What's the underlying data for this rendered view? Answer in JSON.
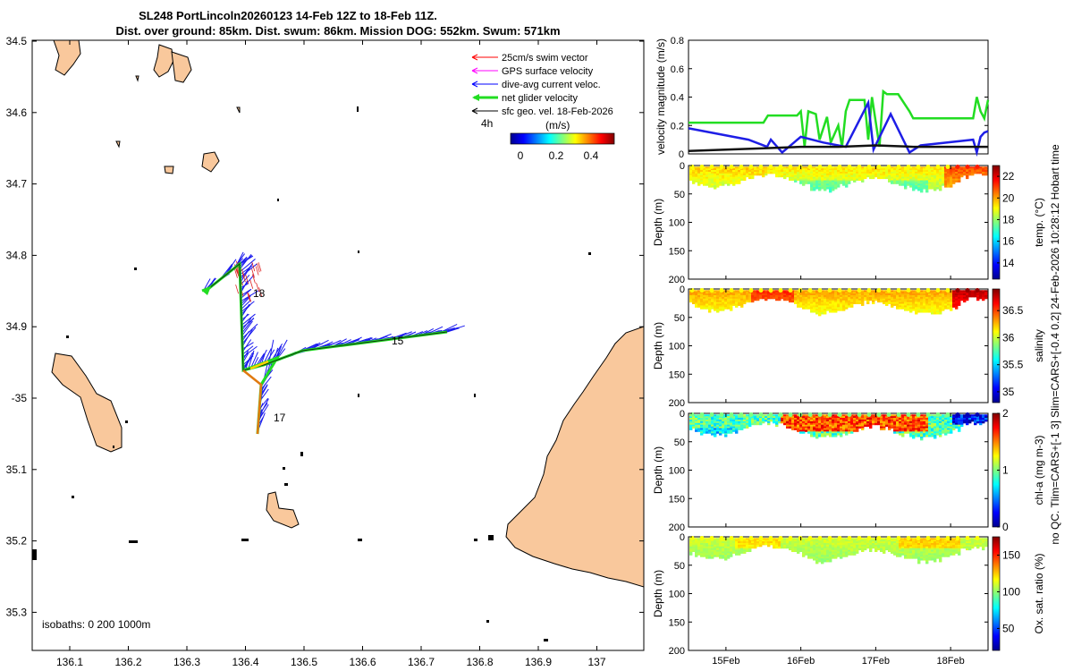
{
  "header": {
    "title_line1": "SL248 PortLincoln20260123 14-Feb 12Z to 18-Feb 11Z.",
    "title_line2": "Dist. over ground: 85km. Dist. swum: 86km. Mission DOG: 552km. Swum: 571km"
  },
  "side_text": "no QC. Tlim=CARS+[-1 3] Slim=CARS+[-0.4 0.2] 24-Feb-2026 10:28:12 Hobart time",
  "map": {
    "lon_ticks": [
      "136.1",
      "136.2",
      "136.3",
      "136.4",
      "136.5",
      "136.6",
      "136.7",
      "136.8",
      "136.9",
      "137"
    ],
    "lat_ticks": [
      "34.5",
      "34.6",
      "34.7",
      "34.8",
      "34.9",
      "-35",
      "35.1",
      "35.2",
      "35.3"
    ],
    "legend": [
      {
        "label": "25cm/s swim vector",
        "color": "#ff0000",
        "kind": "thin"
      },
      {
        "label": "GPS surface velocity",
        "color": "#ff00ff",
        "kind": "thin"
      },
      {
        "label": "dive-avg current veloc.",
        "color": "#0000ff",
        "kind": "thin"
      },
      {
        "label": "net glider velocity",
        "color": "#22dd22",
        "kind": "thick"
      },
      {
        "label": "sfc geo. vel. 18-Feb-2026",
        "color": "#000000",
        "kind": "thin"
      }
    ],
    "ref_arrow_label": "4h",
    "colorbar_label": "(m/s)",
    "colorbar_ticks": [
      "0",
      "0.2",
      "0.4"
    ],
    "day_labels": [
      {
        "text": "18",
        "lon": 136.41,
        "lat": 34.84
      },
      {
        "text": "15",
        "lon": 136.65,
        "lat": 34.93
      },
      {
        "text": "17",
        "lon": 136.43,
        "lat": 35.04
      }
    ],
    "isobaths_label": "isobaths: 0   200  1000m"
  },
  "chart_data": [
    {
      "type": "line",
      "title": "",
      "ylabel": "velocity magnitude (m/s)",
      "ylim": [
        0,
        0.8
      ],
      "yticks": [
        "0",
        "0.2",
        "0.4",
        "0.6",
        "0.8"
      ],
      "x_range_days": [
        14.5,
        18.5
      ],
      "series": [
        {
          "name": "net glider velocity",
          "color": "#22dd22",
          "x": [
            14.5,
            14.8,
            15.2,
            15.5,
            15.56,
            15.6,
            15.8,
            15.95,
            16.0,
            16.05,
            16.1,
            16.2,
            16.25,
            16.35,
            16.4,
            16.5,
            16.55,
            16.6,
            16.65,
            16.75,
            16.85,
            16.9,
            16.95,
            17.05,
            17.1,
            17.15,
            17.3,
            17.45,
            17.5,
            17.9,
            18.3,
            18.35,
            18.4,
            18.45,
            18.5
          ],
          "y": [
            0.22,
            0.22,
            0.22,
            0.22,
            0.27,
            0.27,
            0.27,
            0.27,
            0.3,
            0.05,
            0.3,
            0.28,
            0.1,
            0.26,
            0.08,
            0.2,
            0.05,
            0.3,
            0.38,
            0.38,
            0.38,
            0.1,
            0.4,
            0.05,
            0.44,
            0.42,
            0.42,
            0.3,
            0.25,
            0.25,
            0.25,
            0.4,
            0.3,
            0.25,
            0.38
          ]
        },
        {
          "name": "dive-avg current veloc.",
          "color": "#1e1ee6",
          "x": [
            14.5,
            15.3,
            15.55,
            15.6,
            15.75,
            16.0,
            16.3,
            16.6,
            16.9,
            16.97,
            17.2,
            17.45,
            17.6,
            18.3,
            18.35,
            18.4,
            18.45,
            18.5
          ],
          "y": [
            0.18,
            0.1,
            0.05,
            0.1,
            0.01,
            0.12,
            0.08,
            0.05,
            0.36,
            0.03,
            0.28,
            0.01,
            0.06,
            0.1,
            0.01,
            0.12,
            0.15,
            0.16
          ]
        },
        {
          "name": "sfc geo. vel.",
          "color": "#111111",
          "x": [
            14.5,
            15.0,
            15.5,
            16.0,
            16.5,
            17.0,
            17.5,
            18.0,
            18.5
          ],
          "y": [
            0.02,
            0.03,
            0.04,
            0.05,
            0.05,
            0.06,
            0.05,
            0.05,
            0.05
          ]
        }
      ]
    },
    {
      "type": "heatmap",
      "ylabel": "Depth (m)",
      "yticks": [
        "0",
        "50",
        "100",
        "150",
        "200"
      ],
      "ylim": [
        200,
        0
      ],
      "colorbar_label": "temp. (°C)",
      "colorbar_ticks": [
        "14",
        "16",
        "18",
        "20",
        "22"
      ],
      "crange": [
        12.5,
        23
      ]
    },
    {
      "type": "heatmap",
      "ylabel": "Depth (m)",
      "yticks": [
        "0",
        "50",
        "100",
        "150",
        "200"
      ],
      "ylim": [
        200,
        0
      ],
      "colorbar_label": "salinity",
      "colorbar_ticks": [
        "35",
        "35.5",
        "36",
        "36.5"
      ],
      "crange": [
        34.8,
        36.9
      ]
    },
    {
      "type": "heatmap",
      "ylabel": "Depth (m)",
      "yticks": [
        "0",
        "50",
        "100",
        "150",
        "200"
      ],
      "ylim": [
        200,
        0
      ],
      "colorbar_label": "chl-a (mg m-3)",
      "colorbar_ticks": [
        "0",
        "1",
        "2"
      ],
      "crange": [
        0,
        2
      ]
    },
    {
      "type": "heatmap",
      "ylabel": "Depth (m)",
      "yticks": [
        "0",
        "50",
        "100",
        "150",
        "200"
      ],
      "ylim": [
        200,
        0
      ],
      "colorbar_label": "Ox. sat. ratio (%)",
      "colorbar_ticks": [
        "50",
        "100",
        "150"
      ],
      "crange": [
        20,
        175
      ],
      "xticks": [
        "15Feb",
        "16Feb",
        "17Feb",
        "18Feb"
      ],
      "xtick_days": [
        15,
        16,
        17,
        18
      ]
    }
  ]
}
